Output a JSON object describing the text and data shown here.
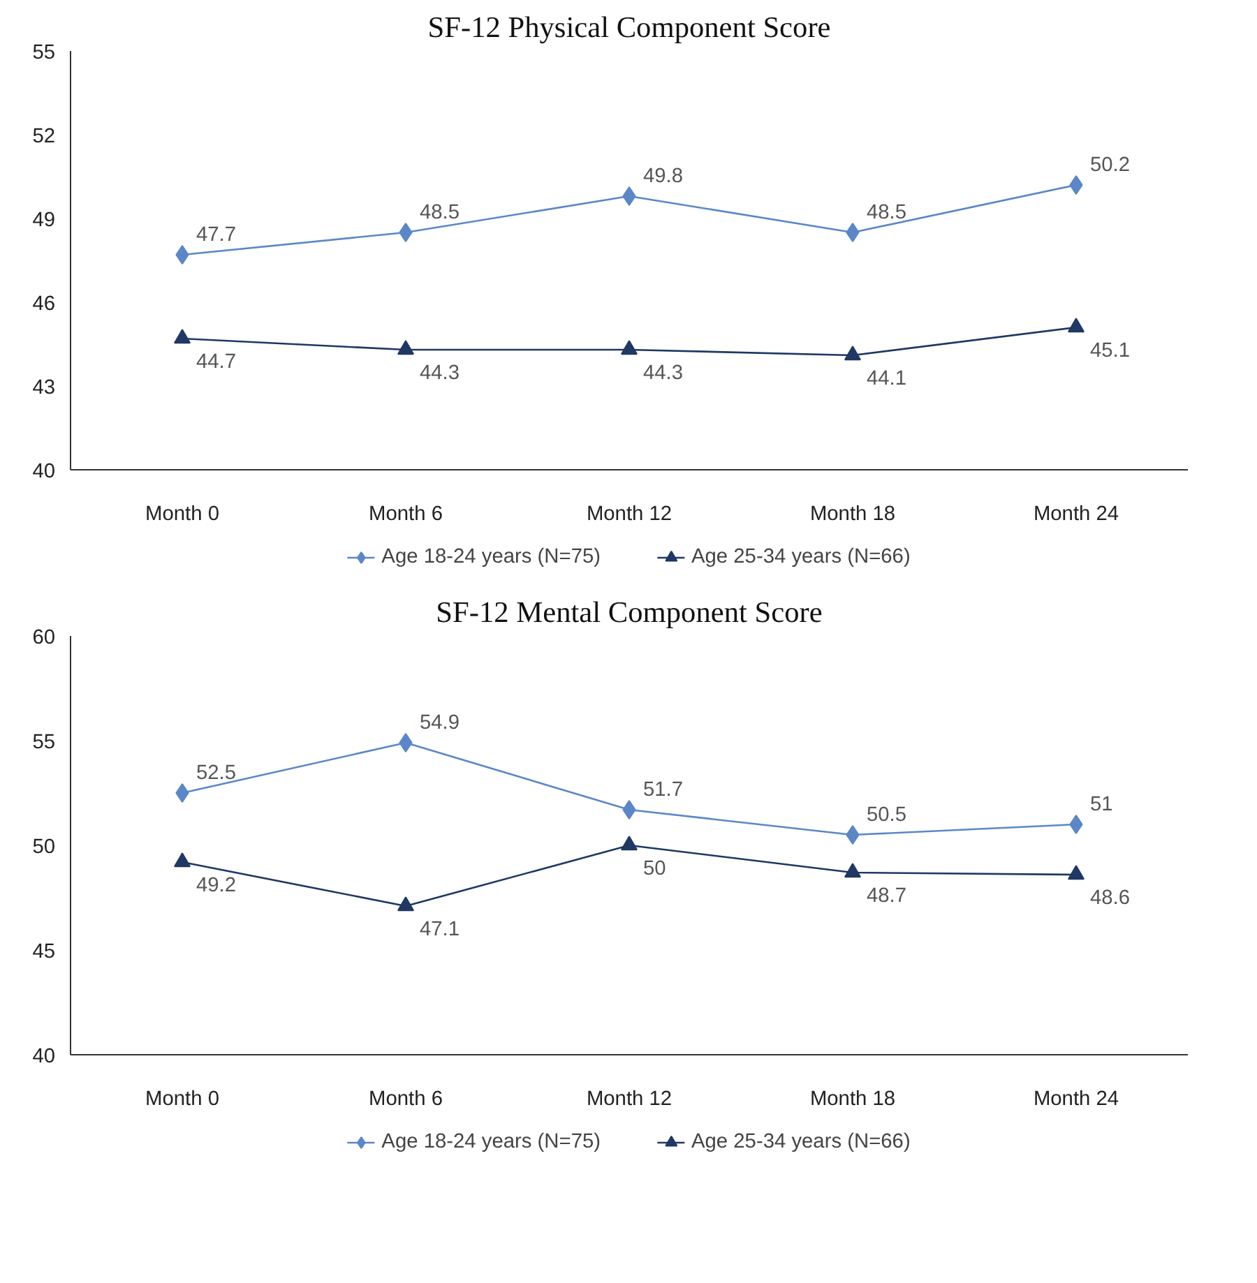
{
  "chart_data": [
    {
      "type": "line",
      "title": "SF-12 Physical Component Score",
      "categories": [
        "Month 0",
        "Month 6",
        "Month 12",
        "Month 18",
        "Month 24"
      ],
      "ylim": [
        40,
        55
      ],
      "yticks": [
        40,
        43,
        46,
        49,
        52,
        55
      ],
      "grid": false,
      "legend": "bottom",
      "data_labels": true,
      "series": [
        {
          "name": "Age 18-24 years (N=75)",
          "color": "#5b87c8",
          "marker": "diamond",
          "values": [
            47.7,
            48.5,
            49.8,
            48.5,
            50.2
          ]
        },
        {
          "name": "Age 25-34 years (N=66)",
          "color": "#1f3864",
          "marker": "triangle",
          "values": [
            44.7,
            44.3,
            44.3,
            44.1,
            45.1
          ]
        }
      ]
    },
    {
      "type": "line",
      "title": "SF-12 Mental Component Score",
      "categories": [
        "Month 0",
        "Month 6",
        "Month 12",
        "Month 18",
        "Month 24"
      ],
      "ylim": [
        40,
        60
      ],
      "yticks": [
        40,
        45,
        50,
        55,
        60
      ],
      "grid": false,
      "legend": "bottom",
      "data_labels": true,
      "series": [
        {
          "name": "Age 18-24 years (N=75)",
          "color": "#5b87c8",
          "marker": "diamond",
          "values": [
            52.5,
            54.9,
            51.7,
            50.5,
            51
          ]
        },
        {
          "name": "Age 25-34 years (N=66)",
          "color": "#1f3864",
          "marker": "triangle",
          "values": [
            49.2,
            47.1,
            50,
            48.7,
            48.6
          ]
        }
      ]
    }
  ]
}
